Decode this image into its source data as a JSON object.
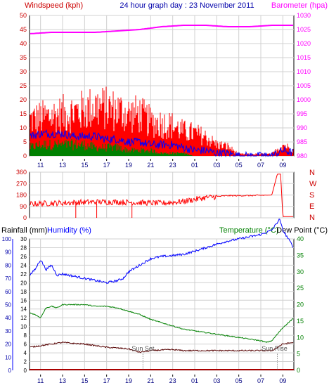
{
  "header": {
    "windspeed_label": "Windspeed (kph)",
    "title": "24 hour graph day : 23 November 2011",
    "barometer_label": "Barometer (hpa)"
  },
  "wind_dir_labels": [
    "N",
    "W",
    "S",
    "E",
    "N"
  ],
  "bottom_header": {
    "rainfall_label": "Rainfall (mm)",
    "humidity_label": "Humidity (%)",
    "temperature_label": "Temperature (°C)",
    "dewpoint_label": "Dew Point (°C)"
  },
  "annotations": {
    "sunset": "Sun Set",
    "sunrise": "Sun Rise"
  },
  "colors": {
    "windspeed": "#ff0000",
    "gust": "#ff0000",
    "avg_wind": "#0000ff",
    "wind_low": "#008000",
    "barometer": "#ff00ff",
    "direction": "#ff0000",
    "humidity": "#0000ff",
    "temperature": "#008000",
    "dewpoint": "#550000",
    "rainfall": "#aa0000",
    "axis_green": "#008000",
    "axis_blue": "#0000ff",
    "axis_magenta": "#ff00ff",
    "axis_red": "#cc0000"
  },
  "chart_data": [
    {
      "type": "line",
      "title": "24 hour graph day : 23 November 2011",
      "x_tick_labels": [
        "11",
        "13",
        "15",
        "17",
        "19",
        "21",
        "23",
        "01",
        "03",
        "05",
        "07",
        "09"
      ],
      "y_left": {
        "label": "Windspeed (kph)",
        "ylim": [
          0,
          50
        ],
        "ticks": [
          "0",
          "5",
          "10",
          "15",
          "20",
          "25",
          "30",
          "35",
          "40",
          "45",
          "50"
        ]
      },
      "y_right": {
        "label": "Barometer (hpa)",
        "ylim": [
          980,
          1030
        ],
        "ticks": [
          "980",
          "985",
          "990",
          "995",
          "1000",
          "1005",
          "1010",
          "1015",
          "1020",
          "1025",
          "1030"
        ]
      },
      "grid": true,
      "series": [
        {
          "name": "Windspeed (kph)",
          "kind": "gust_max",
          "x": [
            10,
            11,
            12,
            13,
            14,
            15,
            16,
            17,
            18,
            19,
            20,
            21,
            22,
            23,
            24,
            25,
            26,
            27,
            28,
            29,
            30,
            31,
            32,
            33,
            34
          ],
          "values": [
            19,
            20,
            21,
            22,
            23,
            24,
            26,
            25,
            24,
            22,
            22,
            18,
            17,
            16,
            13,
            12,
            10,
            6,
            5,
            1,
            1,
            1,
            1,
            6,
            3
          ]
        },
        {
          "name": "",
          "kind": "average",
          "x": [
            10,
            11,
            12,
            13,
            14,
            15,
            16,
            17,
            18,
            19,
            20,
            21,
            22,
            23,
            24,
            25,
            26,
            27,
            28,
            29,
            30,
            31,
            32,
            33,
            34
          ],
          "values": [
            7,
            8,
            8,
            8,
            7,
            7,
            7,
            6,
            6,
            5,
            5,
            4,
            4,
            4,
            3,
            2,
            2,
            1,
            1,
            0,
            0,
            0,
            0,
            2,
            1
          ]
        },
        {
          "name": "",
          "kind": "low",
          "x": [
            10,
            11,
            12,
            13,
            14,
            15,
            16,
            17,
            18,
            19,
            20,
            21,
            22,
            23,
            24,
            25,
            26,
            27,
            28,
            29,
            30,
            31,
            32,
            33,
            34
          ],
          "values": [
            3,
            4,
            4,
            4,
            4,
            4,
            3,
            3,
            3,
            2,
            2,
            2,
            1,
            1,
            1,
            0,
            0,
            0,
            0,
            0,
            0,
            0,
            0,
            0,
            0
          ]
        },
        {
          "name": "Barometer (hpa)",
          "axis": "right",
          "x": [
            10,
            12,
            14,
            16,
            18,
            20,
            22,
            24,
            26,
            28,
            30,
            32,
            34
          ],
          "values": [
            1023.5,
            1024,
            1024,
            1024,
            1024.5,
            1025,
            1026,
            1026.5,
            1026.5,
            1026,
            1026,
            1026.5,
            1026.5
          ]
        }
      ]
    },
    {
      "type": "line",
      "x_tick_labels": [
        "11",
        "13",
        "15",
        "17",
        "19",
        "21",
        "23",
        "01",
        "03",
        "05",
        "07",
        "09"
      ],
      "y": {
        "ylim": [
          0,
          360
        ],
        "ticks": [
          "0",
          "90",
          "180",
          "270",
          "360"
        ]
      },
      "right_labels": [
        "N",
        "W",
        "S",
        "E",
        "N"
      ],
      "grid": true,
      "series": [
        {
          "name": "",
          "x": [
            10,
            12,
            14,
            16,
            18,
            20,
            22,
            24,
            26,
            28,
            30,
            32,
            32.5,
            32.8,
            33,
            34
          ],
          "values": [
            110,
            115,
            120,
            125,
            125,
            120,
            115,
            130,
            160,
            175,
            175,
            180,
            345,
            345,
            10,
            10
          ]
        }
      ]
    },
    {
      "type": "line",
      "x_tick_labels": [
        "11",
        "13",
        "15",
        "17",
        "19",
        "21",
        "23",
        "01",
        "03",
        "05",
        "07",
        "09"
      ],
      "y_left_outer": {
        "label": "Rainfall (mm)",
        "ylim": [
          0,
          100
        ],
        "ticks": [
          "0",
          "10",
          "20",
          "30",
          "40",
          "50",
          "60",
          "70",
          "80",
          "90",
          "100"
        ]
      },
      "y_left_inner": {
        "label": "Humidity (%)",
        "ylim": [
          0,
          30
        ],
        "ticks": [
          "0",
          "2",
          "4",
          "6",
          "8",
          "10",
          "12",
          "14",
          "16",
          "18",
          "20",
          "22",
          "24",
          "26",
          "28",
          "30"
        ]
      },
      "y_right": {
        "label": "Temperature (°C) / Dew Point (°C)",
        "ylim": [
          0,
          40
        ],
        "ticks": [
          "0",
          "5",
          "10",
          "15",
          "20",
          "25",
          "30",
          "35",
          "40"
        ]
      },
      "grid": true,
      "series": [
        {
          "name": "Humidity (%)",
          "x": [
            10,
            10.5,
            11,
            11.5,
            12,
            12.5,
            13,
            14,
            15,
            16,
            17,
            18,
            18.5,
            19,
            20,
            21,
            22,
            23,
            24,
            25,
            26,
            27,
            28,
            29,
            30,
            31,
            32,
            32.7,
            33,
            33.5,
            34
          ],
          "values": [
            21.7,
            23,
            25.3,
            23,
            24,
            21.7,
            22,
            21.5,
            21,
            20.5,
            20,
            20.5,
            21,
            22.5,
            24,
            25.5,
            26,
            26.2,
            26.5,
            27.2,
            28,
            28.8,
            29.5,
            30,
            30.5,
            31,
            32,
            34.5,
            32,
            30,
            28
          ]
        },
        {
          "name": "Temperature (°C)",
          "x": [
            10,
            10.5,
            11,
            11.5,
            12,
            12.5,
            13,
            14,
            15,
            16,
            17,
            18,
            19,
            20,
            21,
            22,
            23,
            24,
            25,
            26,
            27,
            28,
            29,
            30,
            31,
            31.5,
            32,
            32.5,
            33,
            33.5,
            34
          ],
          "values": [
            17.5,
            17,
            16,
            19,
            19.5,
            19,
            20,
            20,
            20,
            19.5,
            19.5,
            19,
            18,
            17,
            15.5,
            14.5,
            13.5,
            12.5,
            12,
            11.5,
            11,
            10.5,
            10,
            9.5,
            9,
            8.5,
            9,
            11,
            13,
            14.5,
            16
          ]
        },
        {
          "name": "Dew Point (°C)",
          "x": [
            10,
            11,
            12,
            13,
            14,
            15,
            16,
            17,
            18,
            19,
            20,
            21,
            22,
            23,
            24,
            25,
            26,
            27,
            28,
            29,
            30,
            31,
            32,
            32.5,
            33,
            34
          ],
          "values": [
            7,
            7.5,
            8,
            8.5,
            8.2,
            8,
            7.5,
            7,
            6.8,
            6.5,
            5.5,
            6,
            6.2,
            6.3,
            6,
            6,
            6,
            6,
            6,
            6,
            6,
            6,
            6,
            7,
            8,
            8.5
          ]
        },
        {
          "name": "Rainfall (mm)",
          "x": [
            10,
            34
          ],
          "values": [
            0,
            0
          ]
        }
      ],
      "annotations": [
        {
          "label": "Sun Set",
          "x": 20.3
        },
        {
          "label": "Sun Rise",
          "x": 32.5
        }
      ]
    }
  ]
}
